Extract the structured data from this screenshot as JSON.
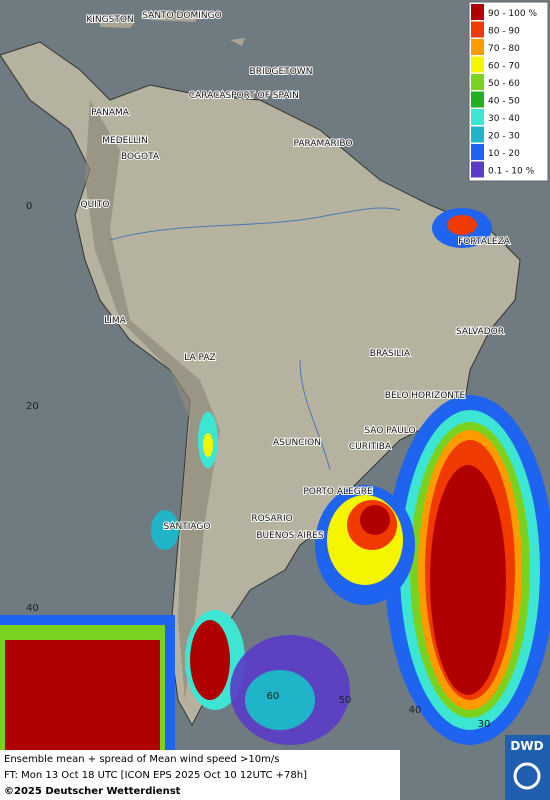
{
  "header": {
    "title": "Ensemble mean + spread of Mean wind speed >10m/s",
    "subtitle": "FT: Mon 13 Oct 18 UTC [ICON EPS 2025 Oct 10 12UTC +78h]",
    "copyright": "©2025 Deutscher Wetterdienst",
    "logo": "DWD"
  },
  "legend": [
    {
      "label": "90 - 100 %",
      "color": "#b00000"
    },
    {
      "label": "80 - 90",
      "color": "#f03a00"
    },
    {
      "label": "70 - 80",
      "color": "#ff9b00"
    },
    {
      "label": "60 - 70",
      "color": "#f5f500"
    },
    {
      "label": "50 - 60",
      "color": "#7ad21e"
    },
    {
      "label": "40 - 50",
      "color": "#21b021"
    },
    {
      "label": "30 - 40",
      "color": "#3ce6d2"
    },
    {
      "label": "20 - 30",
      "color": "#20b4c8"
    },
    {
      "label": "10 - 20",
      "color": "#1e64f0"
    },
    {
      "label": "0.1 - 10 %",
      "color": "#5a3cc8"
    }
  ],
  "cities": [
    "KINGSTON",
    "SANTO DOMINGO",
    "BRIDGETOWN",
    "CARACAS",
    "PORT OF SPAIN",
    "PANAMA",
    "MEDELLIN",
    "BOGOTA",
    "PARAMARIBO",
    "QUITO",
    "FORTALEZA",
    "LIMA",
    "SALVADOR",
    "BRASILIA",
    "LA PAZ",
    "BELO HORIZONTE",
    "SAO PAULO",
    "ASUNCION",
    "CURITIBA",
    "PORTO ALEGRE",
    "SANTIAGO",
    "ROSARIO",
    "BUENOS AIRES"
  ],
  "latitude_labels": [
    "0",
    "20",
    "40"
  ],
  "longitude_labels": [
    "60",
    "50",
    "40",
    "30"
  ]
}
